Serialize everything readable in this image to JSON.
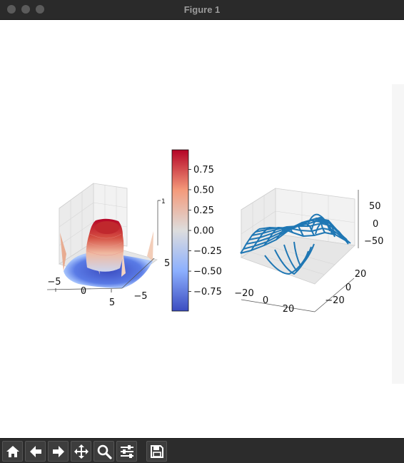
{
  "window": {
    "title": "Figure 1"
  },
  "toolbar": {
    "buttons": [
      {
        "name": "home-icon"
      },
      {
        "name": "back-arrow-icon"
      },
      {
        "name": "forward-arrow-icon"
      },
      {
        "name": "pan-move-icon"
      },
      {
        "name": "zoom-magnifier-icon"
      },
      {
        "name": "subplots-sliders-icon"
      },
      {
        "name": "save-floppy-icon"
      }
    ]
  },
  "colors": {
    "wire": "#1f77b4",
    "cmap_low": "#3b4cc0",
    "cmap_mid": "#dddddd",
    "cmap_high": "#b40426"
  },
  "chart_data": [
    {
      "type": "surface",
      "z_function": "sin(sqrt(x^2+y^2))",
      "colormap": "coolwarm",
      "x_ticks": [
        "−5",
        "0",
        "5"
      ],
      "y_ticks": [
        "−5",
        "5"
      ],
      "z_ticks": [
        "1"
      ],
      "xlim": [
        -5,
        5
      ],
      "ylim": [
        -5,
        5
      ],
      "zlim": [
        -1,
        1
      ],
      "grid": true,
      "colorbar": {
        "ticks": [
          "0.75",
          "0.50",
          "0.25",
          "0.00",
          "−0.25",
          "−0.50",
          "−0.75"
        ],
        "values": [
          0.75,
          0.5,
          0.25,
          0.0,
          -0.25,
          -0.5,
          -0.75
        ],
        "range": [
          -0.99,
          0.99
        ]
      }
    },
    {
      "type": "wireframe",
      "x_ticks": [
        "−20",
        "0",
        "20"
      ],
      "y_ticks": [
        "20",
        "0",
        "−20"
      ],
      "z_ticks": [
        "50",
        "0",
        "−50"
      ],
      "xlim": [
        -30,
        30
      ],
      "ylim": [
        -30,
        30
      ],
      "zlim": [
        -75,
        75
      ],
      "grid": true
    }
  ]
}
